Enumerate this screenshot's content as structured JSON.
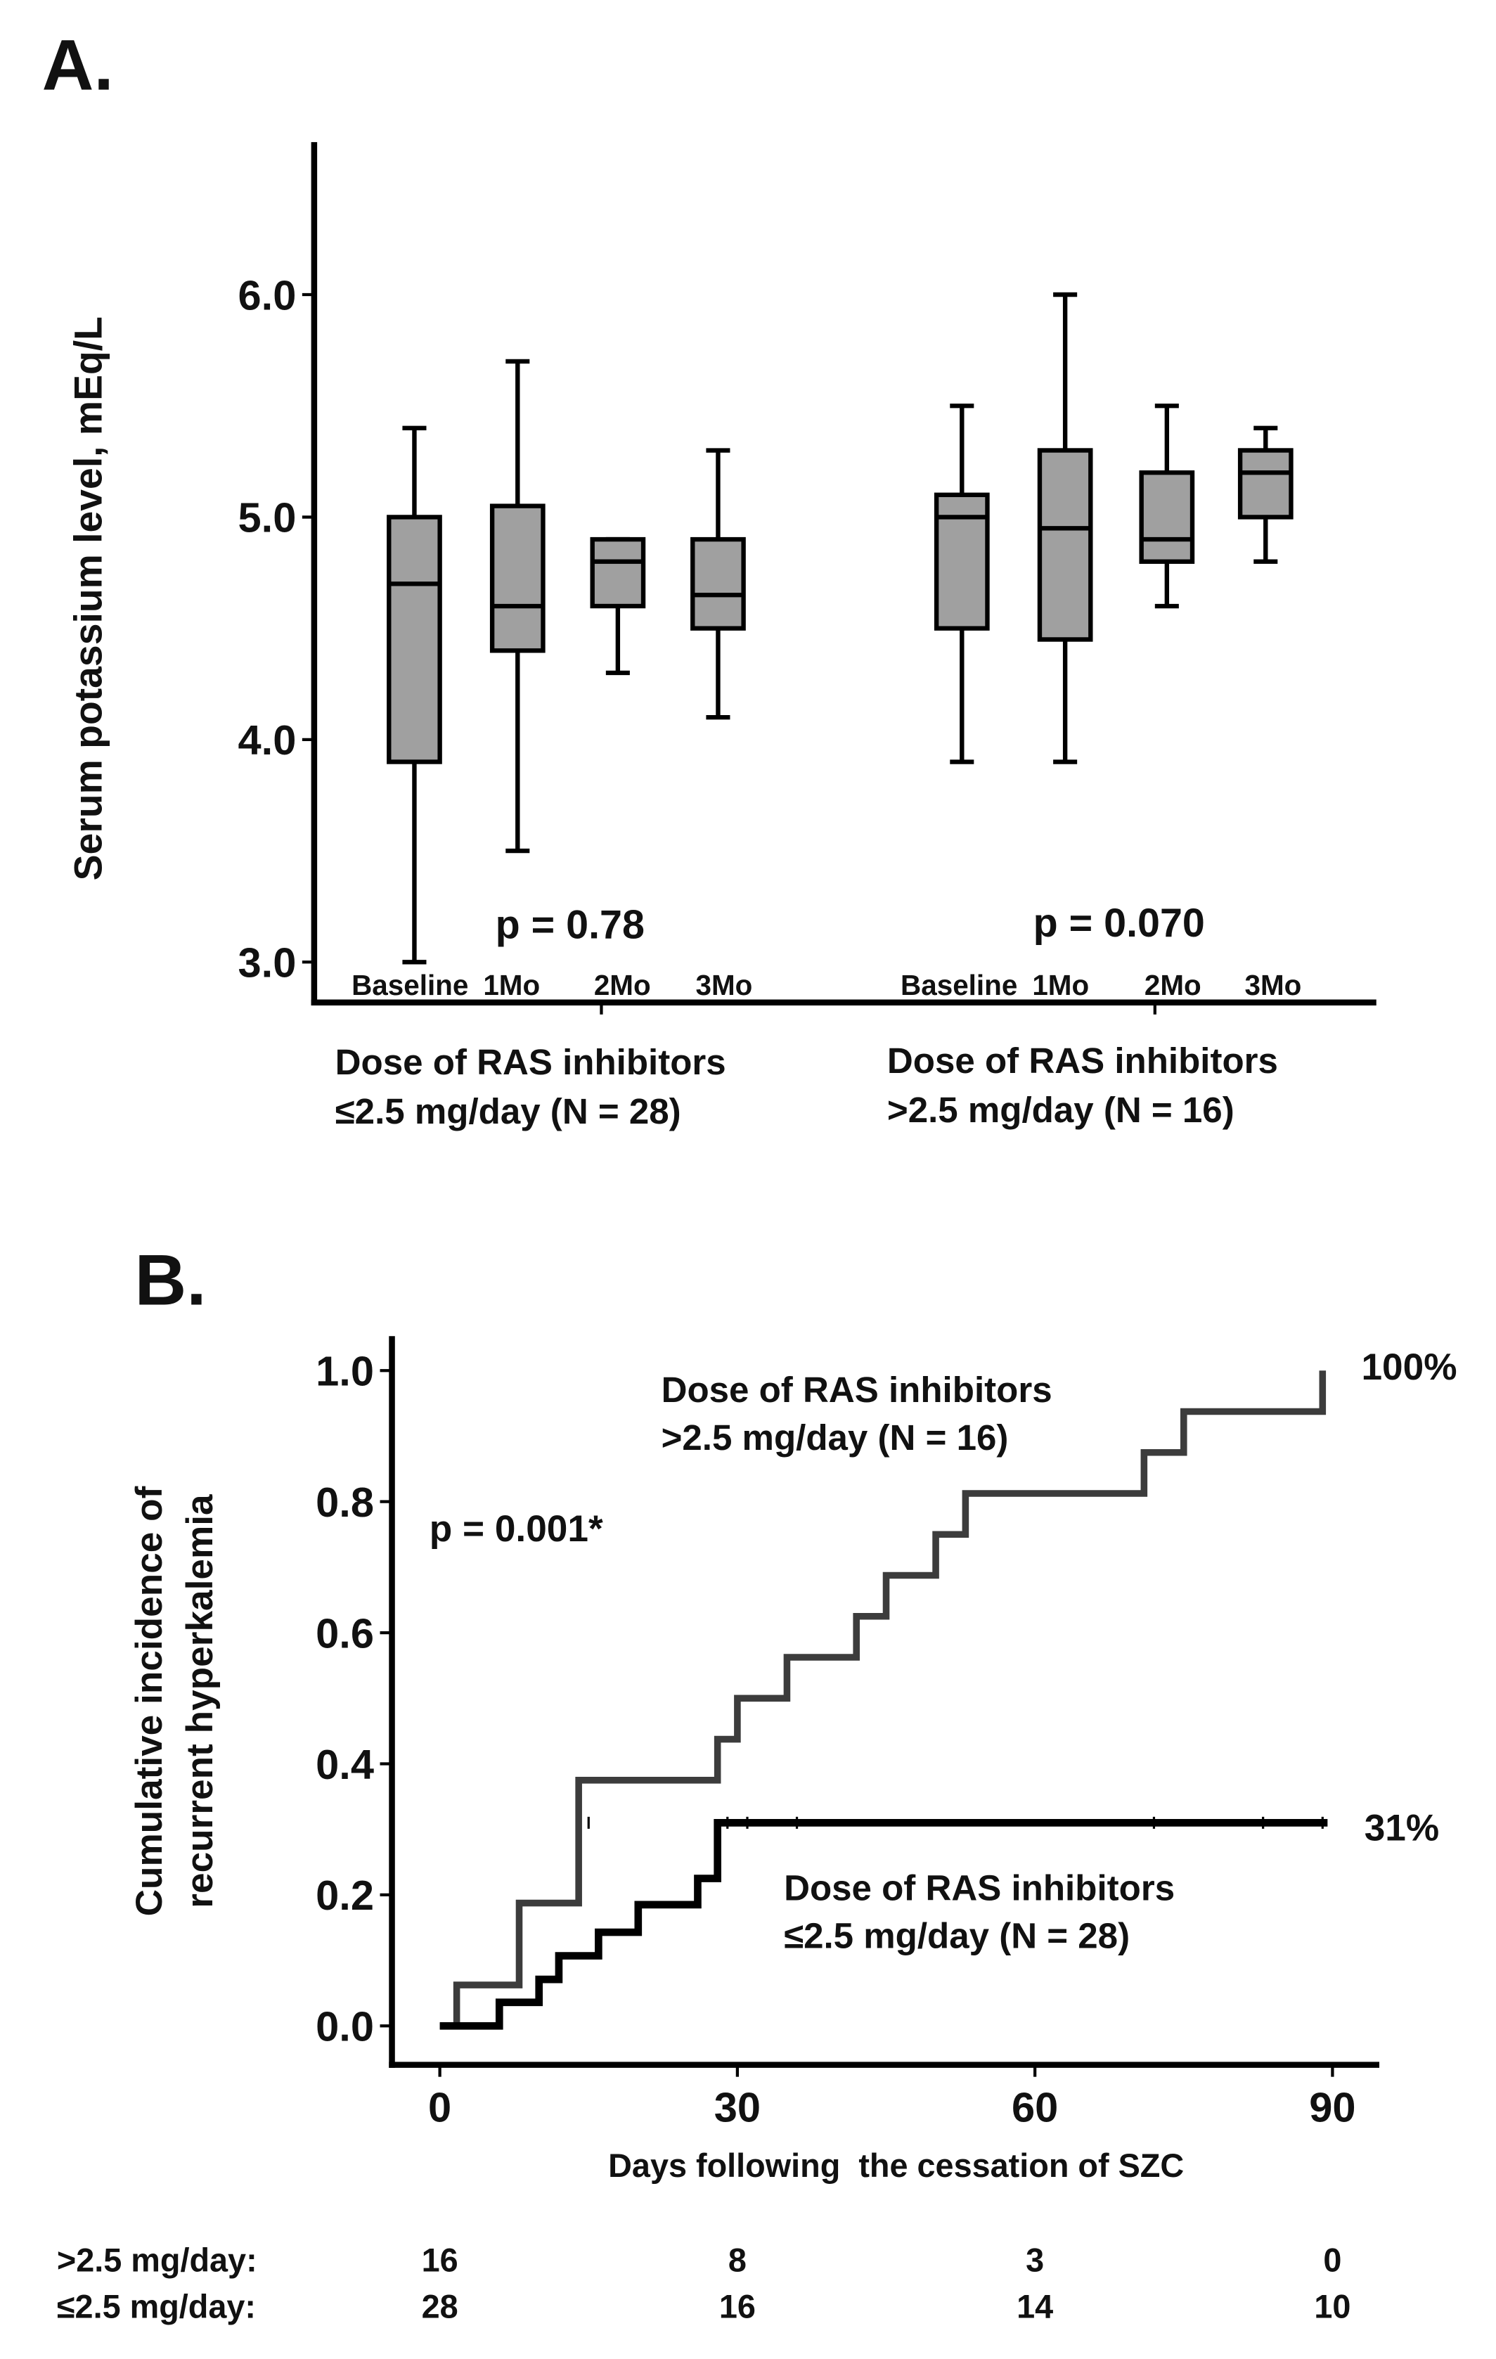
{
  "chart_data": [
    {
      "type": "box",
      "panel_label": "A.",
      "ylabel": "Serum potassium level, mEq/L",
      "ylim": [
        3.0,
        6.6
      ],
      "yticks": [
        "3.0",
        "4.0",
        "5.0",
        "6.0"
      ],
      "ytick_values": [
        3.0,
        4.0,
        5.0,
        6.0
      ],
      "groups": [
        {
          "name_line1": "Dose of RAS inhibitors",
          "name_line2": "≤2.5 mg/day (N = 28)",
          "p_value": "p = 0.78",
          "categories": [
            "Baseline",
            "1Mo",
            "2Mo",
            "3Mo"
          ],
          "boxes": [
            {
              "min": 3.0,
              "q1": 3.9,
              "median": 4.7,
              "q3": 5.0,
              "max": 5.4
            },
            {
              "min": 3.5,
              "q1": 4.4,
              "median": 4.6,
              "q3": 5.05,
              "max": 5.7
            },
            {
              "min": 4.3,
              "q1": 4.6,
              "median": 4.8,
              "q3": 4.9,
              "max": 4.9
            },
            {
              "min": 4.1,
              "q1": 4.5,
              "median": 4.65,
              "q3": 4.9,
              "max": 5.3
            }
          ]
        },
        {
          "name_line1": "Dose of RAS inhibitors",
          "name_line2": ">2.5 mg/day (N = 16)",
          "p_value": "p = 0.070",
          "categories": [
            "Baseline",
            "1Mo",
            "2Mo",
            "3Mo"
          ],
          "boxes": [
            {
              "min": 3.9,
              "q1": 4.5,
              "median": 5.0,
              "q3": 5.1,
              "max": 5.5
            },
            {
              "min": 3.9,
              "q1": 4.45,
              "median": 4.95,
              "q3": 5.3,
              "max": 6.0
            },
            {
              "min": 4.6,
              "q1": 4.8,
              "median": 4.9,
              "q3": 5.2,
              "max": 5.5
            },
            {
              "min": 4.8,
              "q1": 5.0,
              "median": 5.2,
              "q3": 5.3,
              "max": 5.4
            }
          ]
        }
      ],
      "box_fill": "#a0a0a0"
    },
    {
      "type": "line",
      "subtype": "step",
      "panel_label": "B.",
      "ylabel_line1": "Cumulative incidence of",
      "ylabel_line2": "recurrent hyperkalemia",
      "xlabel": "Days following  the cessation of SZC",
      "xlim": [
        0,
        90
      ],
      "ylim": [
        0,
        1.0
      ],
      "xticks": [
        "0",
        "30",
        "60",
        "90"
      ],
      "xtick_values": [
        0,
        30,
        60,
        90
      ],
      "yticks": [
        "0.0",
        "0.2",
        "0.4",
        "0.6",
        "0.8",
        "1.0"
      ],
      "ytick_values": [
        0,
        0.2,
        0.4,
        0.6,
        0.8,
        1.0
      ],
      "p_value": "p = 0.001*",
      "series": [
        {
          "name_line1": "Dose of RAS inhibitors",
          "name_line2": ">2.5 mg/day (N = 16)",
          "end_label": "100%",
          "color": "#3c3c3c",
          "x": [
            0,
            1.7,
            8,
            14,
            28,
            30,
            35,
            42,
            45,
            50,
            53,
            71,
            75,
            89
          ],
          "y": [
            0,
            0.0625,
            0.1875,
            0.375,
            0.4375,
            0.5,
            0.5625,
            0.625,
            0.6875,
            0.75,
            0.8125,
            0.875,
            0.9375,
            1.0
          ],
          "end_x": 89,
          "censored_x": []
        },
        {
          "name_line1": "Dose of RAS inhibitors",
          "name_line2": "≤2.5 mg/day (N = 28)",
          "end_label": "31%",
          "color": "#000000",
          "x": [
            0,
            6,
            10,
            12,
            16,
            20,
            26,
            28
          ],
          "y": [
            0,
            0.036,
            0.071,
            0.107,
            0.143,
            0.185,
            0.225,
            0.31
          ],
          "end_x": 89.5,
          "censored_x": [
            15,
            29,
            31,
            36,
            72,
            83,
            89
          ]
        }
      ],
      "risk_table": {
        "rows": [
          {
            "label": ">2.5 mg/day:",
            "values": [
              "16",
              "8",
              "3",
              "0"
            ]
          },
          {
            "label": "≤2.5 mg/day:",
            "values": [
              "28",
              "16",
              "14",
              "10"
            ]
          }
        ]
      }
    }
  ]
}
